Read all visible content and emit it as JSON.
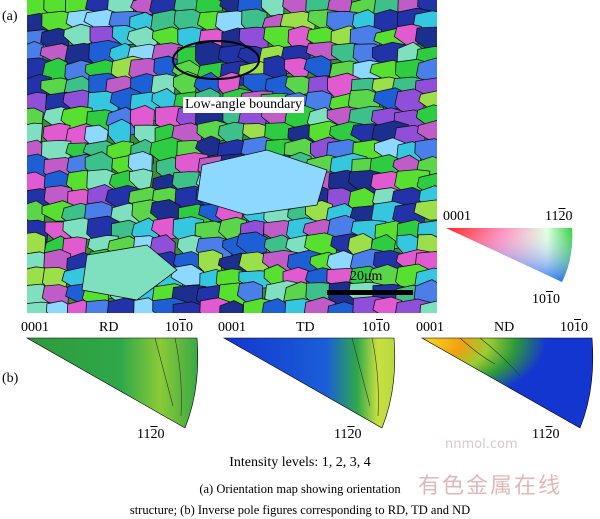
{
  "panel_a_label": "(a)",
  "panel_b_label": "(b)",
  "orientation_map": {
    "callout": "Low-angle boundary",
    "scale_bar": "20μm",
    "key": {
      "top_left": "0001",
      "top_right_base": "11",
      "top_right_bar": "2",
      "top_right_end": "0",
      "bottom_base": "10",
      "bottom_bar": "1",
      "bottom_end": "0"
    }
  },
  "ipf": [
    {
      "corner_left": "0001",
      "direction": "RD",
      "right_base": "10",
      "right_bar": "1",
      "right_end": "0",
      "bottom_base": "11",
      "bottom_bar": "2",
      "bottom_end": "0"
    },
    {
      "corner_left": "0001",
      "direction": "TD",
      "right_base": "10",
      "right_bar": "1",
      "right_end": "0",
      "bottom_base": "11",
      "bottom_bar": "2",
      "bottom_end": "0"
    },
    {
      "corner_left": "0001",
      "direction": "ND",
      "right_base": "10",
      "right_bar": "1",
      "right_end": "0",
      "bottom_base": "11",
      "bottom_bar": "2",
      "bottom_end": "0"
    }
  ],
  "intensity_levels": "Intensity levels: 1, 2, 3, 4",
  "caption_line1": "(a) Orientation map showing orientation",
  "caption_line2": "structure; (b) Inverse pole figures corresponding to RD, TD and ND",
  "watermark": "有色金属在线",
  "watermark_url": "nnmol.com",
  "colors": {
    "grain_palette": [
      "#2ecc40",
      "#58e030",
      "#1f5fd6",
      "#2233aa",
      "#35c7e0",
      "#8f4fd8",
      "#c05cc8",
      "#7fe0c0",
      "#8dd8ff",
      "#3ec08a",
      "#5bd64a",
      "#1c2f8f",
      "#e05ad0",
      "#9be04a",
      "#4a7ee8"
    ],
    "ipf_low": "#1436d0",
    "ipf_mid": "#2f9a3a",
    "ipf_high": "#f2c21b"
  }
}
